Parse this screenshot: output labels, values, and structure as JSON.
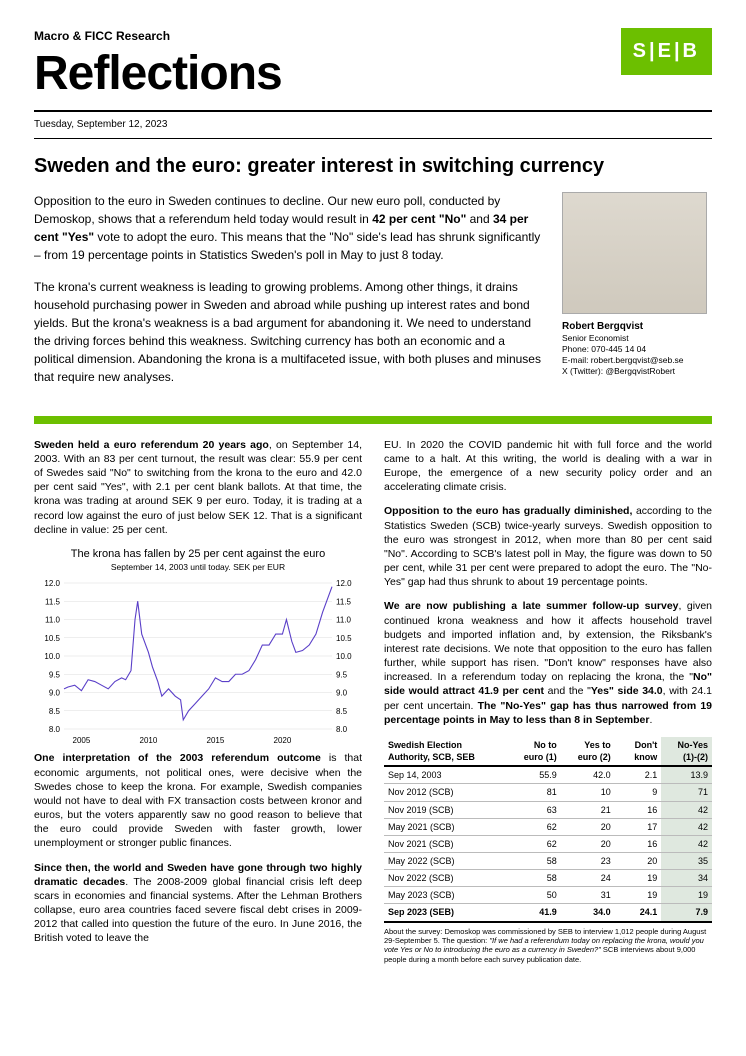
{
  "header": {
    "department": "Macro & FICC Research",
    "masthead": "Reflections",
    "logo_text": "S|E|B",
    "logo_bg": "#6cbf00",
    "date": "Tuesday, September 12, 2023"
  },
  "headline": "Sweden and the euro: greater interest in switching currency",
  "intro": {
    "p1_a": "Opposition to the euro in Sweden continues to decline. Our new euro poll, conducted by Demoskop, shows that a referendum held today would result in ",
    "p1_b": "42 per cent \"No\"",
    "p1_c": " and ",
    "p1_d": "34 per cent \"Yes\"",
    "p1_e": " vote to adopt the euro. This means that the \"No\" side's lead has shrunk significantly – from 19 percentage points in Statistics Sweden's poll in May to just 8 today.",
    "p2": "The krona's current weakness is leading to growing problems. Among other things, it drains household purchasing power in Sweden and abroad while pushing up interest rates and bond yields. But the krona's weakness is a bad argument for abandoning it. We need to understand the driving forces behind this weakness. Switching currency has both an economic and a political dimension. Abandoning the krona is a multifaceted issue, with both pluses and minuses that require new analyses."
  },
  "author": {
    "name": "Robert Bergqvist",
    "title": "Senior Economist",
    "phone": "Phone: 070-445 14 04",
    "email": "E-mail: robert.bergqvist@seb.se",
    "twitter": "X (Twitter): @BergqvistRobert"
  },
  "left_col": {
    "p1_a": "Sweden held a euro referendum 20 years ago",
    "p1_b": ", on September 14, 2003. With an 83 per cent turnout, the result was clear: 55.9 per cent of Swedes said \"No\" to switching from the krona to the euro and 42.0 per cent said \"Yes\", with 2.1 per cent blank ballots. At that time, the krona was trading at around SEK 9 per euro. Today, it is trading at a record low against the euro of just below SEK 12. That is a significant decline in value: 25 per cent.",
    "p2_a": "One interpretation of the 2003 referendum outcome",
    "p2_b": " is that economic arguments, not political ones, were decisive when the Swedes chose to keep the krona. For example, Swedish companies would not have to deal with FX transaction costs between kronor and euros, but the voters apparently saw no good reason to believe that the euro could provide Sweden with faster growth, lower unemployment or stronger public finances.",
    "p3_a": "Since then, the world and Sweden have gone through two highly dramatic decades",
    "p3_b": ". The 2008-2009 global financial crisis left deep scars in economies and financial systems. After the Lehman Brothers collapse, euro area countries faced severe fiscal debt crises in 2009-2012 that called into question the future of the euro. In June 2016, the British voted to leave the"
  },
  "right_col": {
    "p1": "EU. In 2020 the COVID pandemic hit with full force and the world came to a halt. At this writing, the world is dealing with a war in Europe, the emergence of a new security policy order and an accelerating climate crisis.",
    "p2_a": "Opposition to the euro has gradually diminished,",
    "p2_b": " according to the Statistics Sweden (SCB) twice-yearly surveys. Swedish opposition to the euro was strongest in 2012, when more than 80 per cent said \"No\". According to SCB's latest poll in May, the figure was down to 50 per cent, while 31 per cent were prepared to adopt the euro. The \"No-Yes\" gap had thus shrunk to about 19 percentage points.",
    "p3_a": "We are now publishing a late summer follow-up survey",
    "p3_b": ", given continued krona weakness and how it affects household travel budgets and imported inflation and, by extension, the Riksbank's interest rate decisions. We note that opposition to the euro has fallen further, while support has risen. \"Don't know\" responses have also increased. In a referendum today on replacing the krona, the \"",
    "p3_c": "No\" side would attract 41.9 per cent",
    "p3_d": " and the \"",
    "p3_e": "Yes\" side 34.0",
    "p3_f": ", with 24.1 per cent uncertain. ",
    "p3_g": "The \"No-Yes\" gap has thus narrowed from 19 percentage points in May to less than 8 in September",
    "p3_h": "."
  },
  "chart": {
    "title": "The krona has fallen by 25 per cent against the euro",
    "subtitle": "September 14, 2003 until today. SEK per EUR",
    "ylim": [
      8.0,
      12.0
    ],
    "ytick_step": 0.5,
    "xticks": [
      2005,
      2010,
      2015,
      2020
    ],
    "series_color": "#5a3fc8",
    "grid_color": "#dddddd",
    "data": [
      [
        2003.7,
        9.1
      ],
      [
        2004.0,
        9.15
      ],
      [
        2004.5,
        9.2
      ],
      [
        2005.0,
        9.05
      ],
      [
        2005.5,
        9.35
      ],
      [
        2006.0,
        9.3
      ],
      [
        2006.5,
        9.2
      ],
      [
        2007.0,
        9.1
      ],
      [
        2007.5,
        9.3
      ],
      [
        2008.0,
        9.4
      ],
      [
        2008.3,
        9.35
      ],
      [
        2008.7,
        9.6
      ],
      [
        2009.0,
        11.0
      ],
      [
        2009.2,
        11.5
      ],
      [
        2009.5,
        10.6
      ],
      [
        2009.8,
        10.3
      ],
      [
        2010.0,
        10.1
      ],
      [
        2010.3,
        9.7
      ],
      [
        2010.7,
        9.3
      ],
      [
        2011.0,
        8.9
      ],
      [
        2011.5,
        9.1
      ],
      [
        2012.0,
        8.9
      ],
      [
        2012.4,
        8.8
      ],
      [
        2012.6,
        8.25
      ],
      [
        2013.0,
        8.5
      ],
      [
        2013.5,
        8.7
      ],
      [
        2014.0,
        8.9
      ],
      [
        2014.5,
        9.1
      ],
      [
        2015.0,
        9.4
      ],
      [
        2015.5,
        9.3
      ],
      [
        2016.0,
        9.3
      ],
      [
        2016.5,
        9.5
      ],
      [
        2017.0,
        9.5
      ],
      [
        2017.5,
        9.6
      ],
      [
        2018.0,
        9.9
      ],
      [
        2018.5,
        10.3
      ],
      [
        2019.0,
        10.3
      ],
      [
        2019.5,
        10.6
      ],
      [
        2020.0,
        10.6
      ],
      [
        2020.3,
        11.0
      ],
      [
        2020.7,
        10.4
      ],
      [
        2021.0,
        10.1
      ],
      [
        2021.5,
        10.15
      ],
      [
        2022.0,
        10.3
      ],
      [
        2022.5,
        10.6
      ],
      [
        2023.0,
        11.2
      ],
      [
        2023.5,
        11.7
      ],
      [
        2023.7,
        11.9
      ]
    ]
  },
  "table": {
    "headers": [
      "Swedish Election Authority, SCB, SEB",
      "No to euro (1)",
      "Yes to euro (2)",
      "Don't know",
      "No-Yes (1)-(2)"
    ],
    "hi_col_bg": "#dfe8df",
    "rows": [
      [
        "Sep 14, 2003",
        "55.9",
        "42.0",
        "2.1",
        "13.9"
      ],
      [
        "Nov 2012 (SCB)",
        "81",
        "10",
        "9",
        "71"
      ],
      [
        "Nov 2019 (SCB)",
        "63",
        "21",
        "16",
        "42"
      ],
      [
        "May 2021 (SCB)",
        "62",
        "20",
        "17",
        "42"
      ],
      [
        "Nov 2021 (SCB)",
        "62",
        "20",
        "16",
        "42"
      ],
      [
        "May 2022 (SCB)",
        "58",
        "23",
        "20",
        "35"
      ],
      [
        "Nov 2022 (SCB)",
        "58",
        "24",
        "19",
        "34"
      ],
      [
        "May 2023 (SCB)",
        "50",
        "31",
        "19",
        "19"
      ]
    ],
    "highlight_row": [
      "Sep 2023 (SEB)",
      "41.9",
      "34.0",
      "24.1",
      "7.9"
    ]
  },
  "footnote": {
    "a": "About the survey: Demoskop was commissioned by SEB to interview 1,012 people during August 29-September 5. The question: ",
    "b": "\"If we had a referendum today on replacing the krona, would you vote Yes or No to introducing the euro as a currency in Sweden?\"",
    "c": " SCB interviews about 9,000 people during a month before each survey publication date."
  }
}
